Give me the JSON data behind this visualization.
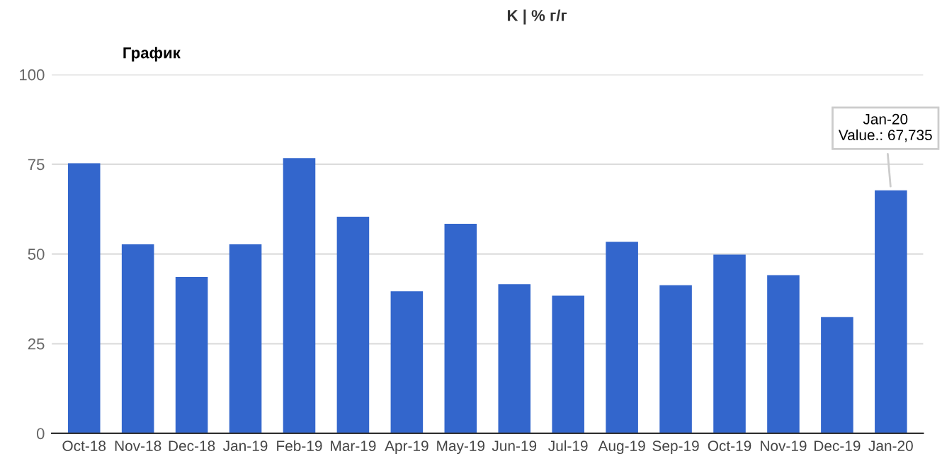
{
  "chart_data": {
    "type": "bar",
    "title": "График",
    "categories": [
      "Oct-18",
      "Nov-18",
      "Dec-18",
      "Jan-19",
      "Feb-19",
      "Mar-19",
      "Apr-19",
      "May-19",
      "Jun-19",
      "Jul-19",
      "Aug-19",
      "Sep-19",
      "Oct-19",
      "Nov-19",
      "Dec-19",
      "Jan-20"
    ],
    "values": [
      75.3,
      52.7,
      43.6,
      52.7,
      76.7,
      60.4,
      39.6,
      58.4,
      41.6,
      38.4,
      53.4,
      41.3,
      49.8,
      44.1,
      32.4,
      67.735
    ],
    "color": "#3366cc",
    "ylim": [
      0,
      100
    ],
    "yticks": [
      0,
      25,
      50,
      75,
      100
    ],
    "grid": "y",
    "annotations": [
      "K | % г/г",
      {
        "text": "Jan-20\nValue.: 67,735",
        "x": "Jan-20",
        "y": 67.735
      }
    ]
  }
}
